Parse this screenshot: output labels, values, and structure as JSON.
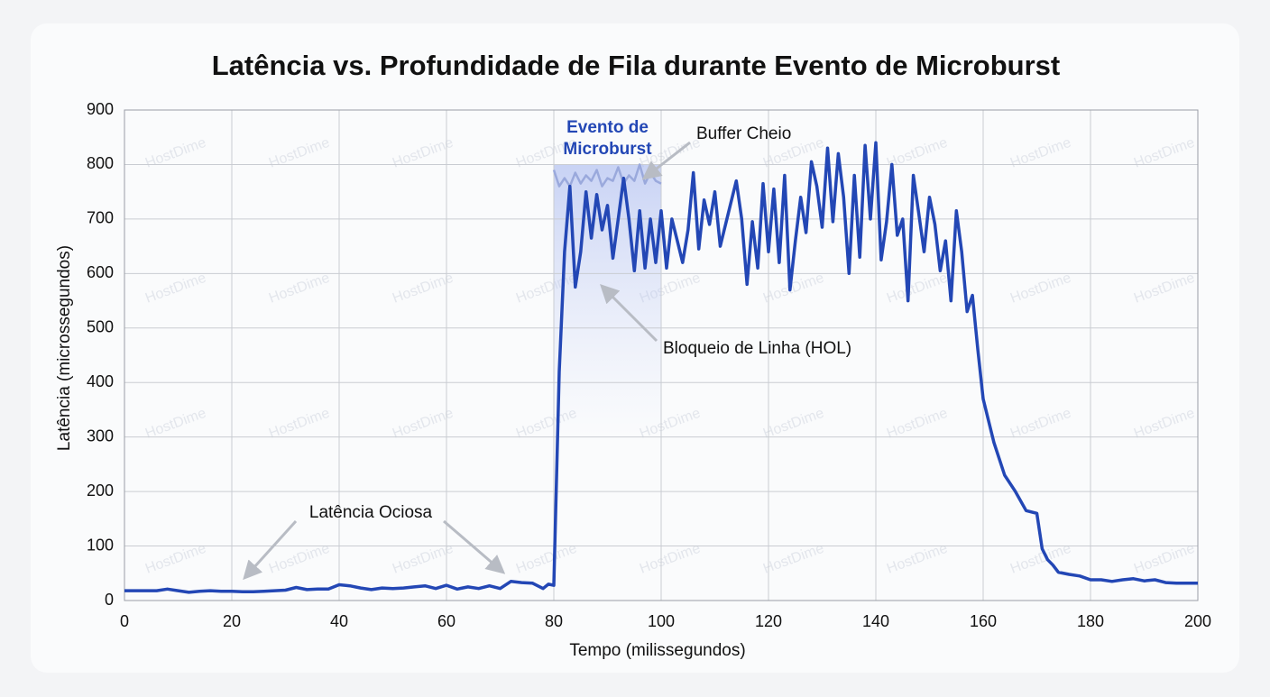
{
  "chart_data": {
    "type": "line",
    "title": "Latência vs. Profundidade de Fila durante Evento de Microburst",
    "x_label": "Tempo (milissegundos)",
    "y_label": "Latência (microssegundos)",
    "watermark": "HostDime",
    "xlim": [
      0,
      200
    ],
    "xticks": [
      0,
      20,
      40,
      60,
      80,
      100,
      120,
      140,
      160,
      180,
      200
    ],
    "ylim": [
      0,
      900
    ],
    "yticks": [
      0,
      100,
      200,
      300,
      400,
      500,
      600,
      700,
      800,
      900
    ],
    "grid": true,
    "highlight": {
      "x": [
        80,
        100
      ],
      "lines": [
        "Evento de",
        "Microburst"
      ]
    },
    "annotations": [
      "Buffer Cheio",
      "Bloqueio de Linha (HOL)",
      "Latência Ociosa"
    ],
    "series": [
      {
        "color": "#2347b5",
        "x": [
          0,
          2,
          4,
          6,
          8,
          10,
          12,
          14,
          16,
          18,
          20,
          22,
          24,
          26,
          28,
          30,
          32,
          34,
          36,
          38,
          40,
          42,
          44,
          46,
          48,
          50,
          52,
          54,
          56,
          58,
          60,
          62,
          64,
          66,
          68,
          70,
          72,
          74,
          76,
          78,
          79,
          80,
          81,
          82,
          83,
          84,
          85,
          86,
          87,
          88,
          89,
          90,
          91,
          92,
          93,
          94,
          95,
          96,
          97,
          98,
          99,
          100,
          101,
          102,
          103,
          104,
          105,
          106,
          107,
          108,
          109,
          110,
          111,
          112,
          113,
          114,
          115,
          116,
          117,
          118,
          119,
          120,
          121,
          122,
          123,
          124,
          125,
          126,
          127,
          128,
          129,
          130,
          131,
          132,
          133,
          134,
          135,
          136,
          137,
          138,
          139,
          140,
          141,
          142,
          143,
          144,
          145,
          146,
          147,
          148,
          149,
          150,
          151,
          152,
          153,
          154,
          155,
          156,
          157,
          158,
          159,
          160,
          162,
          164,
          166,
          168,
          170,
          171,
          172,
          173,
          174,
          176,
          178,
          180,
          182,
          184,
          186,
          188,
          190,
          192,
          194,
          196,
          198,
          200
        ],
        "values": [
          18,
          18,
          18,
          18,
          21,
          18,
          15,
          17,
          18,
          17,
          17,
          16,
          16,
          17,
          18,
          19,
          24,
          20,
          21,
          21,
          29,
          27,
          23,
          20,
          23,
          22,
          23,
          25,
          27,
          22,
          28,
          21,
          25,
          22,
          27,
          22,
          35,
          33,
          32,
          22,
          30,
          28,
          420,
          640,
          760,
          575,
          640,
          750,
          665,
          745,
          680,
          725,
          628,
          700,
          775,
          700,
          605,
          715,
          610,
          700,
          620,
          715,
          610,
          700,
          660,
          620,
          680,
          785,
          645,
          735,
          690,
          750,
          650,
          690,
          730,
          770,
          700,
          580,
          695,
          610,
          765,
          640,
          755,
          620,
          780,
          570,
          660,
          740,
          675,
          805,
          760,
          685,
          830,
          695,
          820,
          740,
          600,
          780,
          630,
          835,
          700,
          840,
          625,
          695,
          800,
          670,
          700,
          550,
          780,
          710,
          640,
          740,
          690,
          605,
          660,
          550,
          715,
          640,
          530,
          560,
          460,
          370,
          290,
          230,
          200,
          165,
          160,
          95,
          75,
          65,
          52,
          48,
          45,
          38,
          38,
          35,
          38,
          40,
          36,
          38,
          33,
          32,
          32,
          32
        ]
      },
      {
        "color": "#9aa9dc",
        "x": [
          80,
          81,
          82,
          83,
          84,
          85,
          86,
          87,
          88,
          89,
          90,
          91,
          92,
          93,
          94,
          95,
          96,
          97,
          98,
          99,
          100
        ],
        "values": [
          790,
          760,
          775,
          760,
          785,
          765,
          780,
          770,
          790,
          760,
          775,
          770,
          795,
          765,
          780,
          770,
          800,
          765,
          785,
          770,
          765
        ]
      }
    ]
  }
}
